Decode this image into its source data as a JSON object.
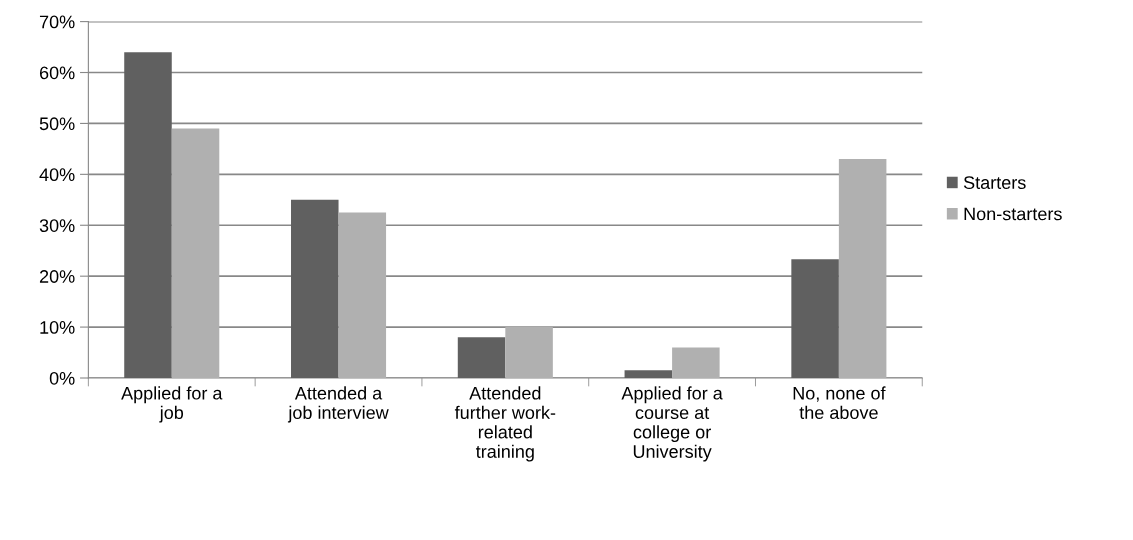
{
  "chart_data": {
    "type": "bar",
    "categories": [
      "Applied for a\njob",
      "Attended a\njob interview",
      "Attended\nfurther work-\nrelated\ntraining",
      "Applied for a\ncourse at\ncollege or\nUniversity",
      "No, none of\nthe above"
    ],
    "series": [
      {
        "name": "Starters",
        "color": "#606060",
        "values": [
          64,
          35,
          8,
          1.5,
          23.3
        ]
      },
      {
        "name": "Non-starters",
        "color": "#b0b0b0",
        "values": [
          49,
          32.5,
          10,
          6,
          43
        ]
      }
    ],
    "ylim": [
      0,
      70
    ],
    "yticks": [
      {
        "value": 0,
        "label": "0%"
      },
      {
        "value": 10,
        "label": "10%"
      },
      {
        "value": 20,
        "label": "20%"
      },
      {
        "value": 30,
        "label": "30%"
      },
      {
        "value": 40,
        "label": "40%"
      },
      {
        "value": 50,
        "label": "50%"
      },
      {
        "value": 60,
        "label": "60%"
      },
      {
        "value": 70,
        "label": "70%"
      }
    ],
    "grid": "y",
    "legend": "right"
  }
}
